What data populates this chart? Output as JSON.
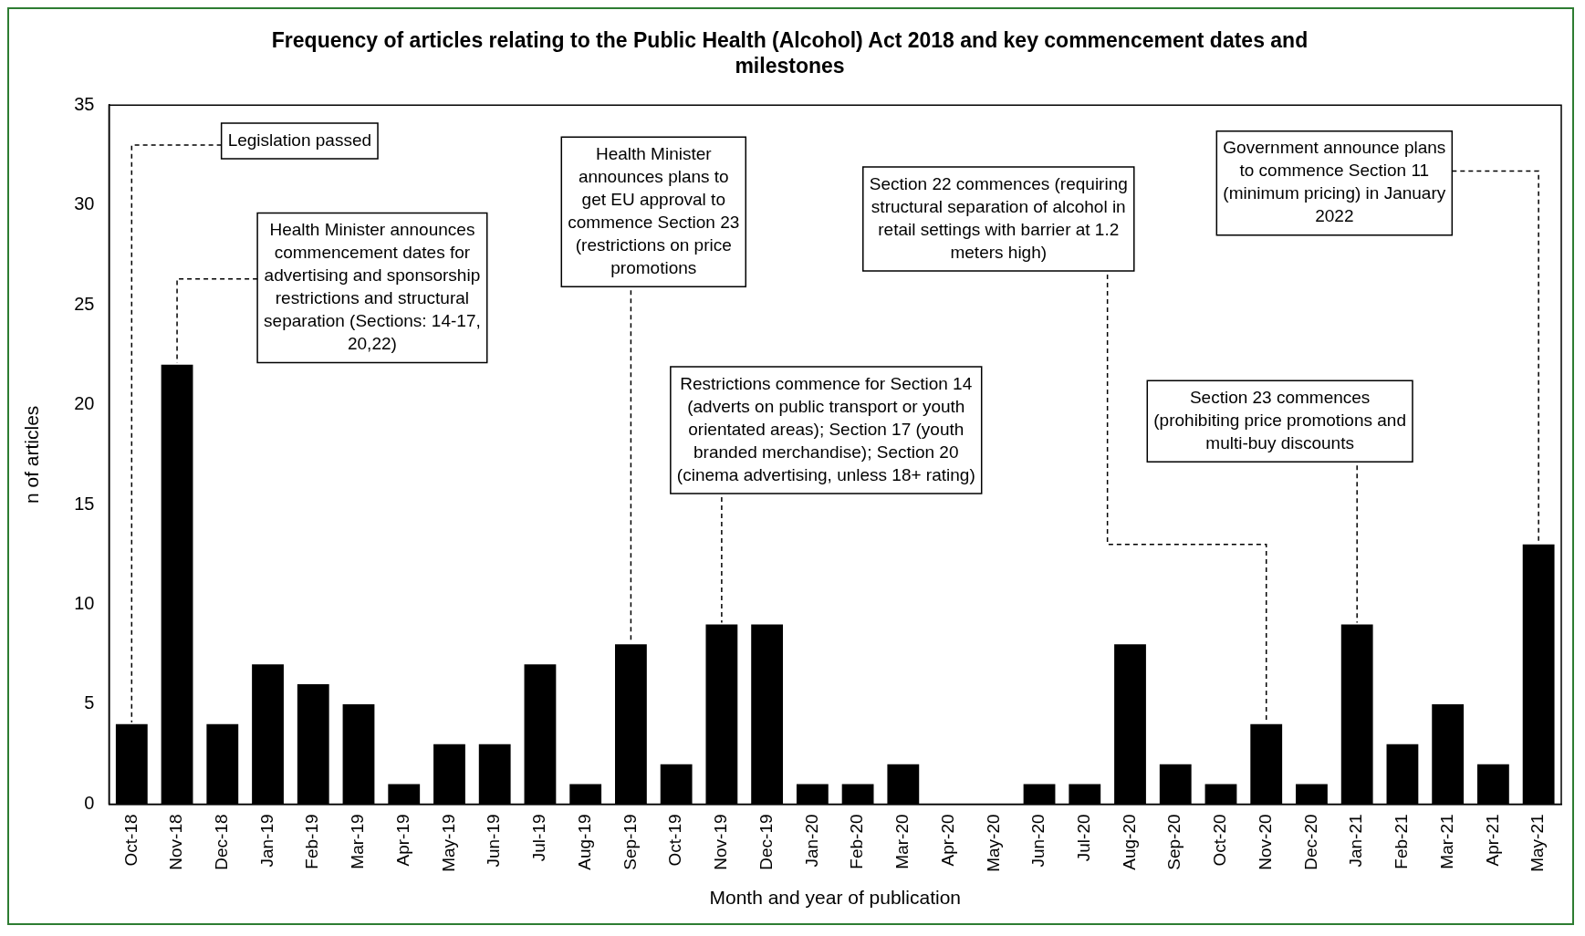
{
  "chart_data": {
    "type": "bar",
    "title": "Frequency of articles relating to the Public Health (Alcohol) Act 2018 and key commencement dates and milestones",
    "xlabel": "Month and year of publication",
    "ylabel": "n of articles",
    "categories": [
      "Oct-18",
      "Nov-18",
      "Dec-18",
      "Jan-19",
      "Feb-19",
      "Mar-19",
      "Apr-19",
      "May-19",
      "Jun-19",
      "Jul-19",
      "Aug-19",
      "Sep-19",
      "Oct-19",
      "Nov-19",
      "Dec-19",
      "Jan-20",
      "Feb-20",
      "Mar-20",
      "Apr-20",
      "May-20",
      "Jun-20",
      "Jul-20",
      "Aug-20",
      "Sep-20",
      "Oct-20",
      "Nov-20",
      "Dec-20",
      "Jan-21",
      "Feb-21",
      "Mar-21",
      "Apr-21",
      "May-21"
    ],
    "values": [
      4,
      22,
      4,
      7,
      6,
      5,
      1,
      3,
      3,
      7,
      1,
      8,
      2,
      9,
      9,
      1,
      1,
      2,
      0,
      0,
      1,
      1,
      8,
      2,
      1,
      4,
      1,
      9,
      3,
      5,
      2,
      13
    ],
    "color": "#000000",
    "ylim": [
      0,
      35
    ],
    "yticks": [
      0,
      5,
      10,
      15,
      20,
      25,
      30,
      35
    ],
    "grid": false,
    "legend": false,
    "annotations": [
      {
        "text": "Legislation passed",
        "x": "Oct-18",
        "y": 4
      },
      {
        "text": "Health Minister announces commencement dates for advertising and sponsorship restrictions and structural separation (Sections: 14-17, 20,22)",
        "x": "Nov-18",
        "y": 22
      },
      {
        "text": "Health Minister announces plans to get EU approval to commence Section 23 (restrictions on price promotions",
        "x": "Sep-19",
        "y": 8
      },
      {
        "text": "Restrictions commence for Section 14 (adverts on public transport or youth orientated areas); Section 17 (youth branded merchandise); Section 20 (cinema advertising, unless 18+ rating)",
        "x": "Nov-19",
        "y": 9
      },
      {
        "text": "Section 22 commences (requiring structural separation of alcohol in retail settings with barrier at 1.2 meters high)",
        "x": "Nov-20",
        "y": 4
      },
      {
        "text": "Section 23 commences (prohibiting price promotions and multi-buy discounts",
        "x": "Jan-21",
        "y": 9
      },
      {
        "text": "Government announce plans to commence Section 11 (minimum pricing) in January 2022",
        "x": "May-21",
        "y": 13
      }
    ]
  }
}
